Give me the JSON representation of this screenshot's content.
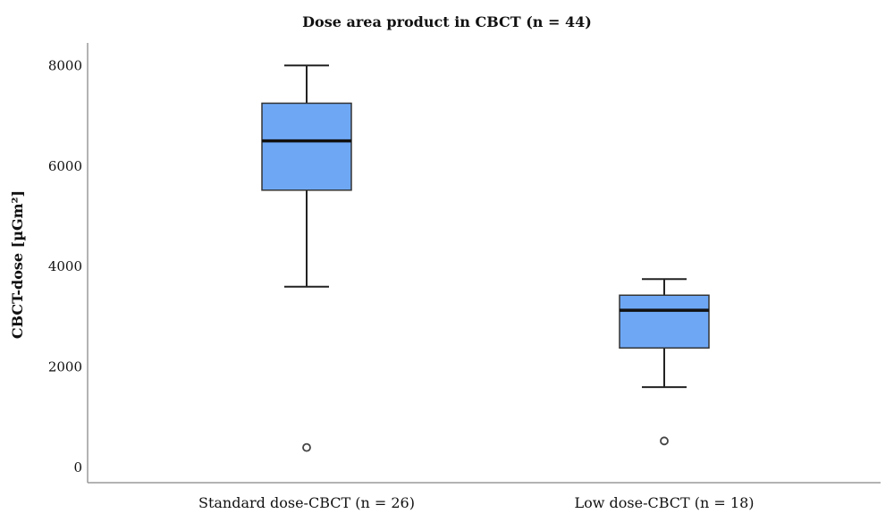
{
  "chart_data": {
    "type": "box",
    "title": "Dose area product in CBCT (n = 44)",
    "xlabel": "",
    "ylabel": "CBCT-dose [µGm²]",
    "ylim": [
      -300,
      8450
    ],
    "yticks": [
      0,
      2000,
      4000,
      6000,
      8000
    ],
    "grid": false,
    "box_color": "#6EA8F5",
    "categories": [
      "Standard dose-CBCT (n = 26)",
      "Low dose-CBCT (n = 18)"
    ],
    "series": [
      {
        "whisker_low": 3600,
        "q1": 5520,
        "median": 6500,
        "q3": 7250,
        "whisker_high": 8000,
        "outliers": [
          400
        ]
      },
      {
        "whisker_low": 1600,
        "q1": 2380,
        "median": 3130,
        "q3": 3430,
        "whisker_high": 3750,
        "outliers": [
          530
        ]
      }
    ]
  }
}
